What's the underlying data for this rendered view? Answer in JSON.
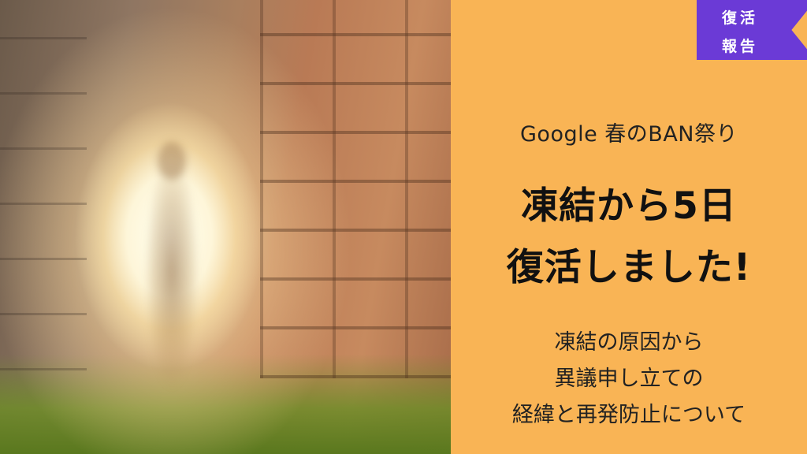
{
  "photo": {
    "description_icon": "glowing-figure-in-stone-doorway"
  },
  "badge": {
    "line1": "復活",
    "line2": "報告",
    "color": "#6b3ad6"
  },
  "panel": {
    "background": "#f9b455",
    "subtitle": "Google  春のBAN祭り",
    "headline_line1": "凍結から5日",
    "headline_line2": "復活しました!",
    "desc_line1": "凍結の原因から",
    "desc_line2": "異議申し立ての",
    "desc_line3": "経緯と再発防止について"
  }
}
